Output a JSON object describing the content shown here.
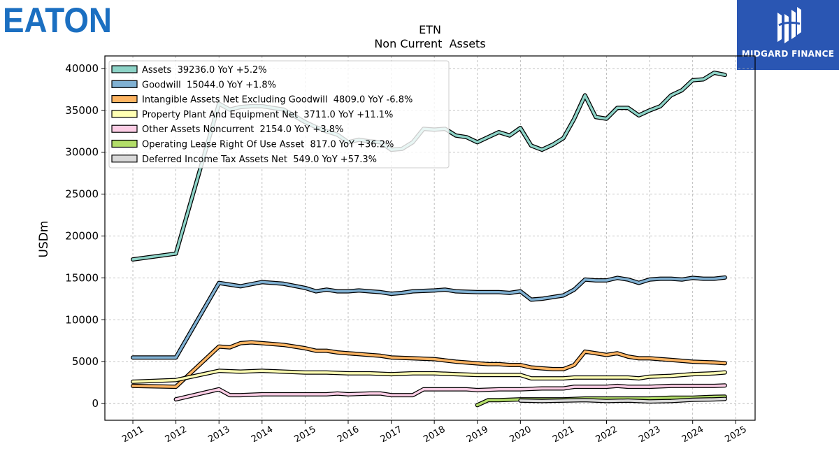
{
  "logos": {
    "left_brand": "EATON",
    "right_brand": "MIDGARD FINANCE",
    "brand_blue": "#1b6fc1",
    "right_bg": "#2a56b3"
  },
  "chart_data": {
    "type": "line",
    "title": "ETN",
    "subtitle": "Non Current  Assets",
    "ylabel": "USDm",
    "xlabel": "",
    "ylim": [
      -2000,
      41500
    ],
    "xlim": [
      2010.35,
      2025.45
    ],
    "yticks": [
      0,
      5000,
      10000,
      15000,
      20000,
      25000,
      30000,
      35000,
      40000
    ],
    "xticks": [
      2011,
      2012,
      2013,
      2014,
      2015,
      2016,
      2017,
      2018,
      2019,
      2020,
      2021,
      2022,
      2023,
      2024,
      2025
    ],
    "grid": true,
    "legend_position": "top-left",
    "series": [
      {
        "name": "Assets",
        "legend": "Assets  39236.0 YoY +5.2%",
        "color": "#8dd3c7",
        "points": [
          [
            2011,
            17200
          ],
          [
            2012,
            17900
          ],
          [
            2013,
            35800
          ],
          [
            2013.25,
            35100
          ],
          [
            2013.5,
            35400
          ],
          [
            2013.75,
            35500
          ],
          [
            2014,
            35500
          ],
          [
            2014.5,
            35100
          ],
          [
            2015,
            33600
          ],
          [
            2015.25,
            33000
          ],
          [
            2015.5,
            32500
          ],
          [
            2015.75,
            32100
          ],
          [
            2016,
            31200
          ],
          [
            2016.25,
            31500
          ],
          [
            2016.5,
            31300
          ],
          [
            2016.75,
            31200
          ],
          [
            2017,
            30300
          ],
          [
            2017.25,
            30400
          ],
          [
            2017.5,
            31200
          ],
          [
            2017.75,
            32800
          ],
          [
            2018,
            32700
          ],
          [
            2018.25,
            32800
          ],
          [
            2018.5,
            32000
          ],
          [
            2018.75,
            31800
          ],
          [
            2019,
            31200
          ],
          [
            2019.25,
            31800
          ],
          [
            2019.5,
            32400
          ],
          [
            2019.75,
            32000
          ],
          [
            2020,
            32900
          ],
          [
            2020.25,
            30800
          ],
          [
            2020.5,
            30300
          ],
          [
            2020.75,
            30900
          ],
          [
            2021,
            31700
          ],
          [
            2021.25,
            34000
          ],
          [
            2021.5,
            36800
          ],
          [
            2021.75,
            34200
          ],
          [
            2022,
            34000
          ],
          [
            2022.25,
            35300
          ],
          [
            2022.5,
            35300
          ],
          [
            2022.75,
            34400
          ],
          [
            2023,
            35000
          ],
          [
            2023.25,
            35500
          ],
          [
            2023.5,
            36800
          ],
          [
            2023.75,
            37400
          ],
          [
            2024,
            38600
          ],
          [
            2024.25,
            38700
          ],
          [
            2024.5,
            39500
          ],
          [
            2024.75,
            39236
          ]
        ]
      },
      {
        "name": "Goodwill",
        "legend": "Goodwill  15044.0 YoY +1.8%",
        "color": "#80b1d3",
        "points": [
          [
            2011,
            5500
          ],
          [
            2012,
            5500
          ],
          [
            2013,
            14400
          ],
          [
            2013.25,
            14200
          ],
          [
            2013.5,
            14000
          ],
          [
            2014,
            14500
          ],
          [
            2014.5,
            14300
          ],
          [
            2015,
            13800
          ],
          [
            2015.25,
            13400
          ],
          [
            2015.5,
            13600
          ],
          [
            2015.75,
            13400
          ],
          [
            2016,
            13400
          ],
          [
            2016.25,
            13500
          ],
          [
            2016.5,
            13400
          ],
          [
            2016.75,
            13300
          ],
          [
            2017,
            13100
          ],
          [
            2017.25,
            13200
          ],
          [
            2017.5,
            13400
          ],
          [
            2018,
            13500
          ],
          [
            2018.25,
            13600
          ],
          [
            2018.5,
            13400
          ],
          [
            2019,
            13300
          ],
          [
            2019.5,
            13300
          ],
          [
            2019.75,
            13200
          ],
          [
            2020,
            13400
          ],
          [
            2020.25,
            12400
          ],
          [
            2020.5,
            12500
          ],
          [
            2020.75,
            12700
          ],
          [
            2021,
            12900
          ],
          [
            2021.25,
            13600
          ],
          [
            2021.5,
            14800
          ],
          [
            2021.75,
            14700
          ],
          [
            2022,
            14700
          ],
          [
            2022.25,
            15000
          ],
          [
            2022.5,
            14800
          ],
          [
            2022.75,
            14400
          ],
          [
            2023,
            14800
          ],
          [
            2023.25,
            14900
          ],
          [
            2023.5,
            14900
          ],
          [
            2023.75,
            14800
          ],
          [
            2024,
            15000
          ],
          [
            2024.25,
            14900
          ],
          [
            2024.5,
            14900
          ],
          [
            2024.75,
            15044
          ]
        ]
      },
      {
        "name": "Intangible Assets Net Excluding Goodwill",
        "legend": "Intangible Assets Net Excluding Goodwill  4809.0 YoY -6.8%",
        "color": "#fdb462",
        "points": [
          [
            2011,
            2100
          ],
          [
            2012,
            2000
          ],
          [
            2013,
            6800
          ],
          [
            2013.25,
            6700
          ],
          [
            2013.5,
            7200
          ],
          [
            2013.75,
            7300
          ],
          [
            2014,
            7200
          ],
          [
            2014.5,
            7000
          ],
          [
            2015,
            6600
          ],
          [
            2015.25,
            6300
          ],
          [
            2015.5,
            6300
          ],
          [
            2015.75,
            6100
          ],
          [
            2016,
            6000
          ],
          [
            2016.25,
            5900
          ],
          [
            2016.5,
            5800
          ],
          [
            2016.75,
            5700
          ],
          [
            2017,
            5500
          ],
          [
            2017.5,
            5400
          ],
          [
            2018,
            5300
          ],
          [
            2018.5,
            5000
          ],
          [
            2019,
            4800
          ],
          [
            2019.25,
            4700
          ],
          [
            2019.5,
            4700
          ],
          [
            2019.75,
            4600
          ],
          [
            2020,
            4600
          ],
          [
            2020.25,
            4300
          ],
          [
            2020.5,
            4200
          ],
          [
            2020.75,
            4100
          ],
          [
            2021,
            4100
          ],
          [
            2021.25,
            4600
          ],
          [
            2021.5,
            6200
          ],
          [
            2021.75,
            6000
          ],
          [
            2022,
            5800
          ],
          [
            2022.25,
            6000
          ],
          [
            2022.5,
            5600
          ],
          [
            2022.75,
            5400
          ],
          [
            2023,
            5400
          ],
          [
            2023.25,
            5300
          ],
          [
            2023.5,
            5200
          ],
          [
            2023.75,
            5100
          ],
          [
            2024,
            5000
          ],
          [
            2024.5,
            4900
          ],
          [
            2024.75,
            4809
          ]
        ]
      },
      {
        "name": "Property Plant And Equipment Net",
        "legend": "Property Plant And Equipment Net  3711.0 YoY +11.1%",
        "color": "#ffffb3",
        "points": [
          [
            2011,
            2600
          ],
          [
            2012,
            2800
          ],
          [
            2013,
            3900
          ],
          [
            2013.5,
            3800
          ],
          [
            2014,
            3900
          ],
          [
            2014.5,
            3800
          ],
          [
            2015,
            3700
          ],
          [
            2015.5,
            3700
          ],
          [
            2016,
            3600
          ],
          [
            2016.5,
            3600
          ],
          [
            2017,
            3500
          ],
          [
            2017.5,
            3600
          ],
          [
            2018,
            3600
          ],
          [
            2018.5,
            3500
          ],
          [
            2019,
            3400
          ],
          [
            2019.5,
            3400
          ],
          [
            2020,
            3400
          ],
          [
            2020.25,
            3000
          ],
          [
            2020.5,
            3000
          ],
          [
            2021,
            3000
          ],
          [
            2021.25,
            3100
          ],
          [
            2021.5,
            3100
          ],
          [
            2022,
            3100
          ],
          [
            2022.5,
            3100
          ],
          [
            2022.75,
            3000
          ],
          [
            2023,
            3200
          ],
          [
            2023.5,
            3300
          ],
          [
            2024,
            3500
          ],
          [
            2024.5,
            3600
          ],
          [
            2024.75,
            3711
          ]
        ]
      },
      {
        "name": "Other Assets Noncurrent",
        "legend": "Other Assets Noncurrent  2154.0 YoY +3.8%",
        "color": "#fccde5",
        "points": [
          [
            2012,
            500
          ],
          [
            2013,
            1700
          ],
          [
            2013.25,
            1000
          ],
          [
            2013.5,
            1000
          ],
          [
            2014,
            1100
          ],
          [
            2014.5,
            1100
          ],
          [
            2015,
            1100
          ],
          [
            2015.5,
            1100
          ],
          [
            2015.75,
            1200
          ],
          [
            2016,
            1100
          ],
          [
            2016.5,
            1200
          ],
          [
            2016.75,
            1200
          ],
          [
            2017,
            1000
          ],
          [
            2017.5,
            1000
          ],
          [
            2017.75,
            1700
          ],
          [
            2018,
            1700
          ],
          [
            2018.5,
            1700
          ],
          [
            2018.75,
            1700
          ],
          [
            2019,
            1600
          ],
          [
            2019.5,
            1700
          ],
          [
            2020,
            1700
          ],
          [
            2020.5,
            1800
          ],
          [
            2021,
            1800
          ],
          [
            2021.25,
            2000
          ],
          [
            2021.75,
            2000
          ],
          [
            2022,
            2000
          ],
          [
            2022.25,
            2100
          ],
          [
            2022.5,
            2000
          ],
          [
            2023,
            2000
          ],
          [
            2023.5,
            2100
          ],
          [
            2024,
            2100
          ],
          [
            2024.5,
            2100
          ],
          [
            2024.75,
            2154
          ]
        ]
      },
      {
        "name": "Operating Lease Right Of Use Asset",
        "legend": "Operating Lease Right Of Use Asset  817.0 YoY +36.2%",
        "color": "#b3de69",
        "points": [
          [
            2019,
            -200
          ],
          [
            2019.25,
            400
          ],
          [
            2019.5,
            400
          ],
          [
            2020,
            500
          ],
          [
            2020.5,
            500
          ],
          [
            2021,
            500
          ],
          [
            2021.5,
            600
          ],
          [
            2022,
            600
          ],
          [
            2022.5,
            600
          ],
          [
            2023,
            600
          ],
          [
            2023.5,
            700
          ],
          [
            2024,
            700
          ],
          [
            2024.5,
            800
          ],
          [
            2024.75,
            817
          ]
        ]
      },
      {
        "name": "Deferred Income Tax Assets Net",
        "legend": "Deferred Income Tax Assets Net  549.0 YoY +57.3%",
        "color": "#d9d9d9",
        "points": [
          [
            2020,
            350
          ],
          [
            2020.5,
            300
          ],
          [
            2021,
            350
          ],
          [
            2021.5,
            400
          ],
          [
            2022,
            300
          ],
          [
            2022.5,
            350
          ],
          [
            2023,
            250
          ],
          [
            2023.5,
            300
          ],
          [
            2024,
            450
          ],
          [
            2024.5,
            500
          ],
          [
            2024.75,
            549
          ]
        ]
      }
    ]
  }
}
